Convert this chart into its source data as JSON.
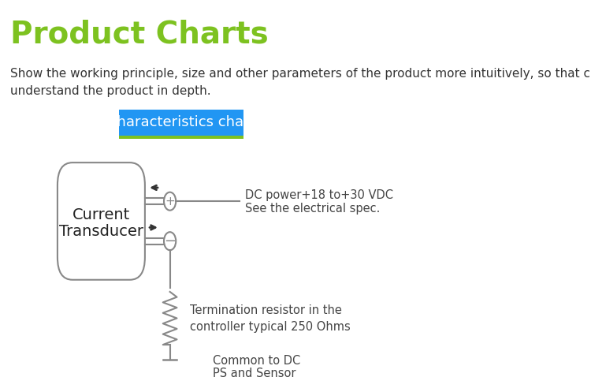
{
  "title": "Product Charts",
  "title_color": "#7dc220",
  "subtitle": "Show the working principle, size and other parameters of the product more intuitively, so that customers can\nunderstand the product in depth.",
  "subtitle_color": "#333333",
  "banner_text": "Characteristics chart",
  "banner_bg": "#2196f3",
  "banner_underline": "#7dc220",
  "box_text_line1": "Current",
  "box_text_line2": "Transducer",
  "box_text_color": "#222222",
  "box_border_color": "#888888",
  "box_fill_color": "#ffffff",
  "label1_line1": "DC power+18 to+30 VDC",
  "label1_line2": "See the electrical spec.",
  "label2": "Termination resistor in the\ncontroller typical 250 Ohms",
  "label3_line1": "Common to DC",
  "label3_line2": "PS and Sensor",
  "text_color": "#444444",
  "bg_color": "#ffffff",
  "arrow_color": "#333333",
  "wire_color": "#888888",
  "circle_color": "#888888",
  "ground_color": "#888888"
}
